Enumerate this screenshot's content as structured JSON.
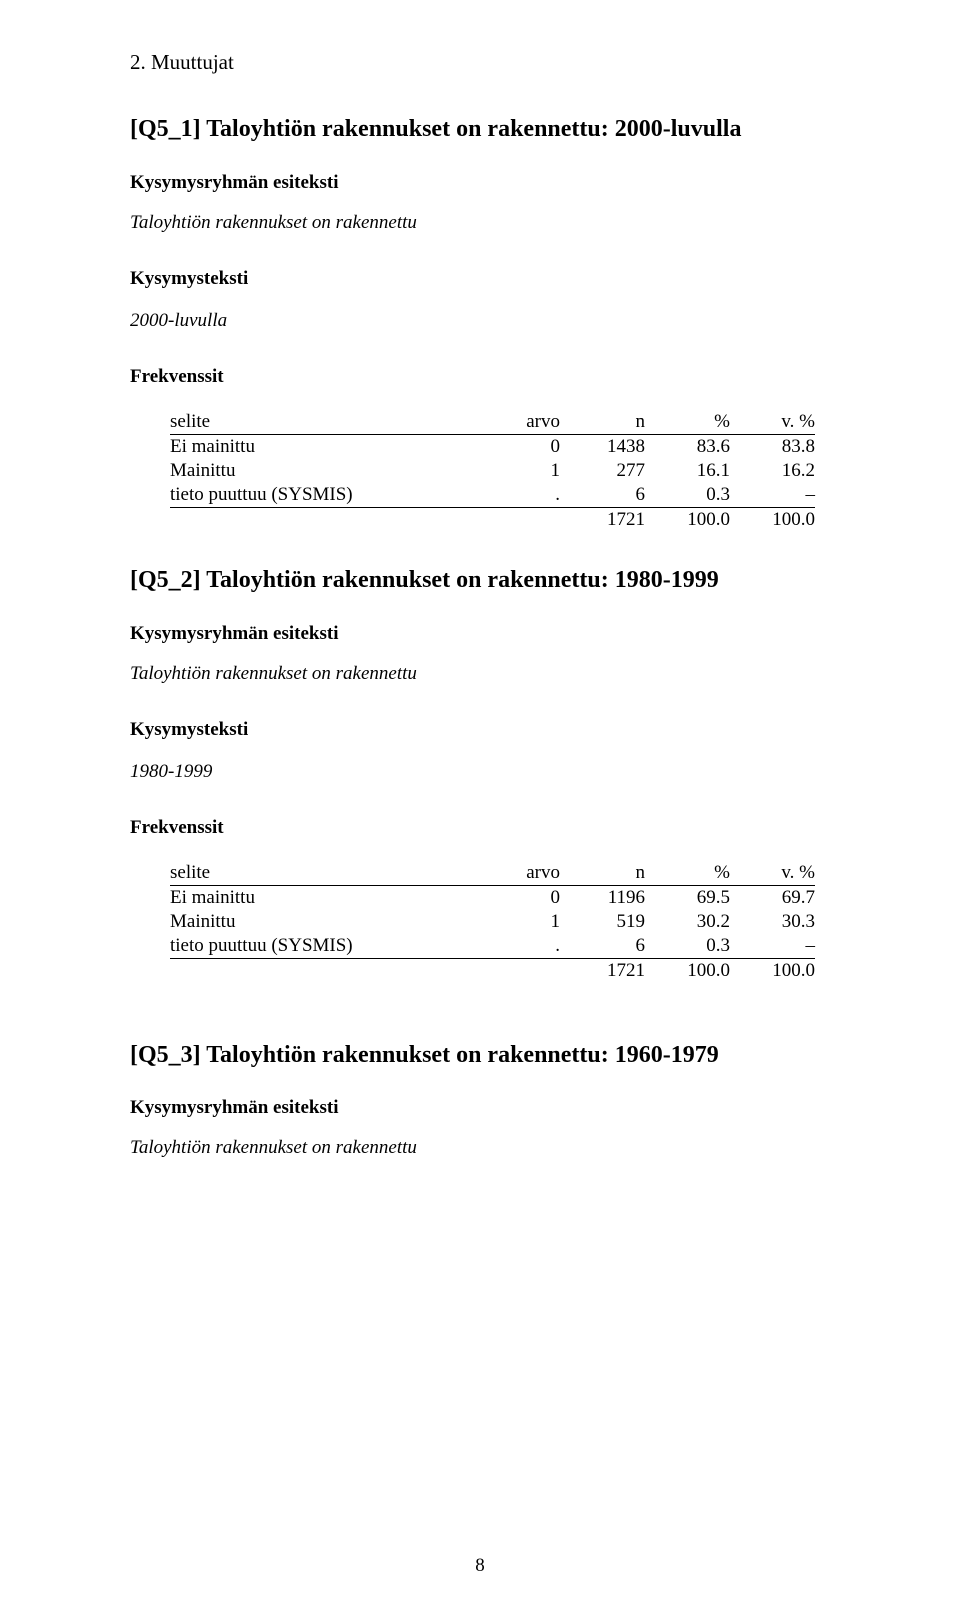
{
  "chapter": "2. Muuttujat",
  "page_number": "8",
  "labels": {
    "group_heading": "Kysymysryhmän esiteksti",
    "question_heading": "Kysymysteksti",
    "freq_heading": "Frekvenssit"
  },
  "table_headers": {
    "label": "selite",
    "arvo": "arvo",
    "n": "n",
    "pct": "%",
    "vpct": "v. %"
  },
  "sections": {
    "q5_1": {
      "title": "[Q5_1] Taloyhtiön rakennukset on rakennettu: 2000-luvulla",
      "group_text": "Taloyhtiön rakennukset on rakennettu",
      "question_text": "2000-luvulla",
      "rows": [
        {
          "label": "Ei mainittu",
          "arvo": "0",
          "n": "1438",
          "pct": "83.6",
          "vpct": "83.8"
        },
        {
          "label": "Mainittu",
          "arvo": "1",
          "n": "277",
          "pct": "16.1",
          "vpct": "16.2"
        },
        {
          "label": "tieto puuttuu (SYSMIS)",
          "arvo": ".",
          "n": "6",
          "pct": "0.3",
          "vpct": "–"
        }
      ],
      "total": {
        "n": "1721",
        "pct": "100.0",
        "vpct": "100.0"
      }
    },
    "q5_2": {
      "title": "[Q5_2] Taloyhtiön rakennukset on rakennettu: 1980-1999",
      "group_text": "Taloyhtiön rakennukset on rakennettu",
      "question_text": "1980-1999",
      "rows": [
        {
          "label": "Ei mainittu",
          "arvo": "0",
          "n": "1196",
          "pct": "69.5",
          "vpct": "69.7"
        },
        {
          "label": "Mainittu",
          "arvo": "1",
          "n": "519",
          "pct": "30.2",
          "vpct": "30.3"
        },
        {
          "label": "tieto puuttuu (SYSMIS)",
          "arvo": ".",
          "n": "6",
          "pct": "0.3",
          "vpct": "–"
        }
      ],
      "total": {
        "n": "1721",
        "pct": "100.0",
        "vpct": "100.0"
      }
    },
    "q5_3": {
      "title": "[Q5_3] Taloyhtiön rakennukset on rakennettu: 1960-1979",
      "group_text": "Taloyhtiön rakennukset on rakennettu"
    }
  }
}
